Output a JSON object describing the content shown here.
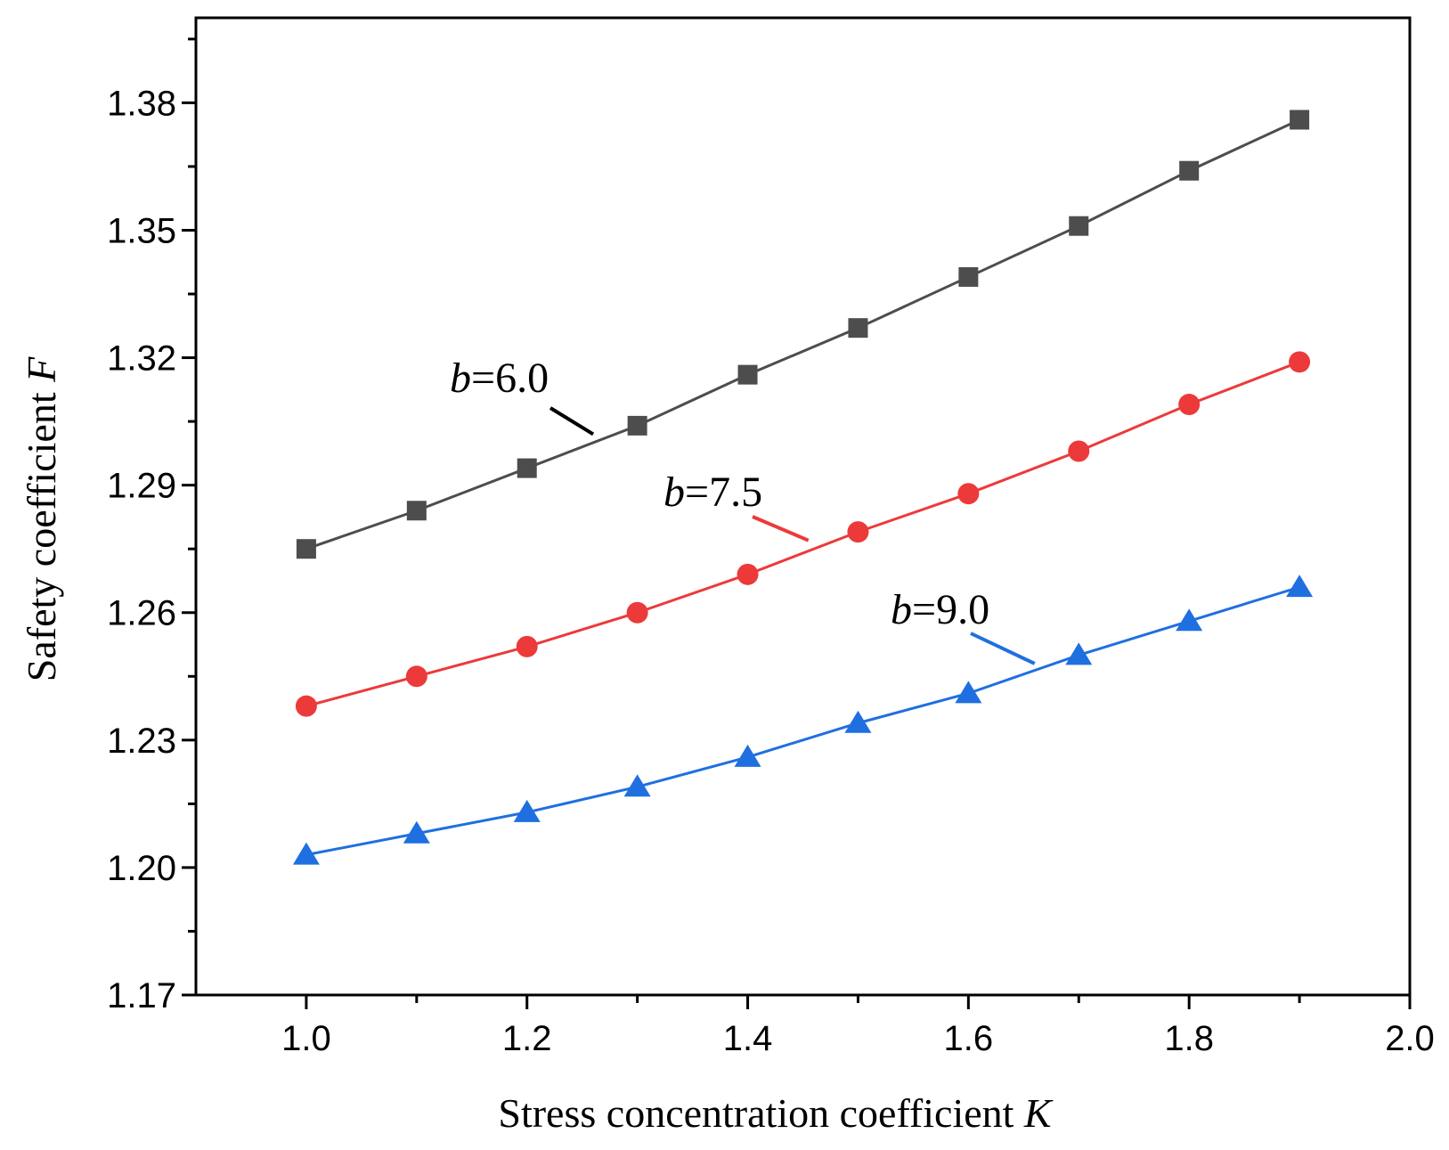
{
  "chart_data": {
    "type": "line",
    "title": "",
    "xlabel": "Stress concentration coefficient",
    "xlabel_var": "K",
    "ylabel": "Safety coefficient",
    "ylabel_var": "F",
    "xlim": [
      0.9,
      2.0
    ],
    "ylim": [
      1.17,
      1.4
    ],
    "xticks": [
      1.0,
      1.2,
      1.4,
      1.6,
      1.8,
      2.0
    ],
    "xtick_labels": [
      "1.0",
      "1.2",
      "1.4",
      "1.6",
      "1.8",
      "2.0"
    ],
    "yticks": [
      1.17,
      1.2,
      1.23,
      1.26,
      1.29,
      1.32,
      1.35,
      1.38
    ],
    "ytick_labels": [
      "1.17",
      "1.20",
      "1.23",
      "1.26",
      "1.29",
      "1.32",
      "1.35",
      "1.38"
    ],
    "grid": false,
    "x": [
      1.0,
      1.1,
      1.2,
      1.3,
      1.4,
      1.5,
      1.6,
      1.7,
      1.8,
      1.9
    ],
    "series": [
      {
        "name": "b=6.0",
        "label_var": "b",
        "label_value": "=6.0",
        "marker": "square",
        "color": "#4d4d4d",
        "values": [
          1.275,
          1.284,
          1.294,
          1.304,
          1.316,
          1.327,
          1.339,
          1.351,
          1.364,
          1.376
        ],
        "annotation_anchor": [
          1.26,
          1.302
        ]
      },
      {
        "name": "b=7.5",
        "label_var": "b",
        "label_value": "=7.5",
        "marker": "circle",
        "color": "#ec3a3a",
        "values": [
          1.238,
          1.245,
          1.252,
          1.26,
          1.269,
          1.279,
          1.288,
          1.298,
          1.309,
          1.319
        ],
        "annotation_anchor": [
          1.455,
          1.277
        ]
      },
      {
        "name": "b=9.0",
        "label_var": "b",
        "label_value": "=9.0",
        "marker": "triangle",
        "color": "#1f6fe0",
        "values": [
          1.203,
          1.208,
          1.213,
          1.219,
          1.226,
          1.234,
          1.241,
          1.25,
          1.258,
          1.266
        ],
        "annotation_anchor": [
          1.66,
          1.248
        ]
      }
    ]
  }
}
